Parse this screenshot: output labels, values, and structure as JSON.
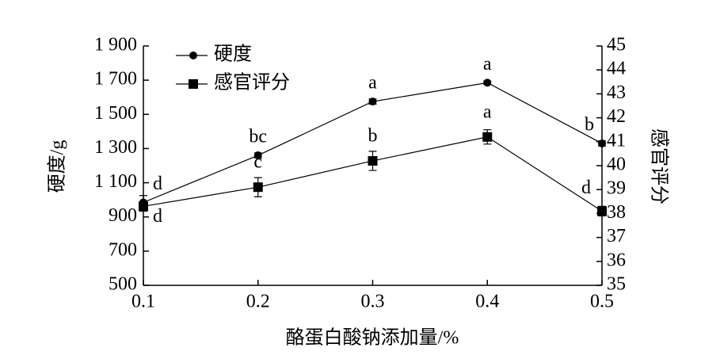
{
  "chart_data": {
    "type": "line",
    "xlabel": "酪蛋白酸钠添加量/%",
    "ylabel": "硬度/g",
    "y2label": "感官评分",
    "x": [
      0.1,
      0.2,
      0.3,
      0.4,
      0.5
    ],
    "xlim": [
      0.1,
      0.5
    ],
    "xticks": [
      0.1,
      0.2,
      0.3,
      0.4,
      0.5
    ],
    "ylim": [
      500,
      1900
    ],
    "yticks": [
      500,
      700,
      900,
      {
        "value": 1100,
        "label": "1 100"
      },
      {
        "value": 1300,
        "label": "1 300"
      },
      {
        "value": 1500,
        "label": "1 500"
      },
      {
        "value": 1700,
        "label": "1 700"
      },
      {
        "value": 1900,
        "label": "1 900"
      }
    ],
    "y2lim": [
      35,
      45
    ],
    "y2ticks": [
      35,
      36,
      37,
      38,
      39,
      40,
      41,
      42,
      43,
      44,
      45
    ],
    "legend": "top-left",
    "series": [
      {
        "name": "硬度",
        "color": "#000000",
        "marker": "circle",
        "values": [
          985,
          1260,
          1575,
          1685,
          1330
        ],
        "errors": [
          40,
          15,
          15,
          10,
          15
        ],
        "labels": [
          "d",
          "bc",
          "a",
          "a",
          "b"
        ]
      },
      {
        "name": "感官评分",
        "color": "#000000",
        "marker": "square",
        "axis": "y2",
        "values": [
          38.3,
          39.1,
          40.2,
          41.2,
          38.1
        ],
        "errors": [
          0.2,
          0.4,
          0.4,
          0.3,
          0.2
        ],
        "labels": [
          "d",
          "c",
          "b",
          "a",
          "d"
        ]
      }
    ]
  }
}
